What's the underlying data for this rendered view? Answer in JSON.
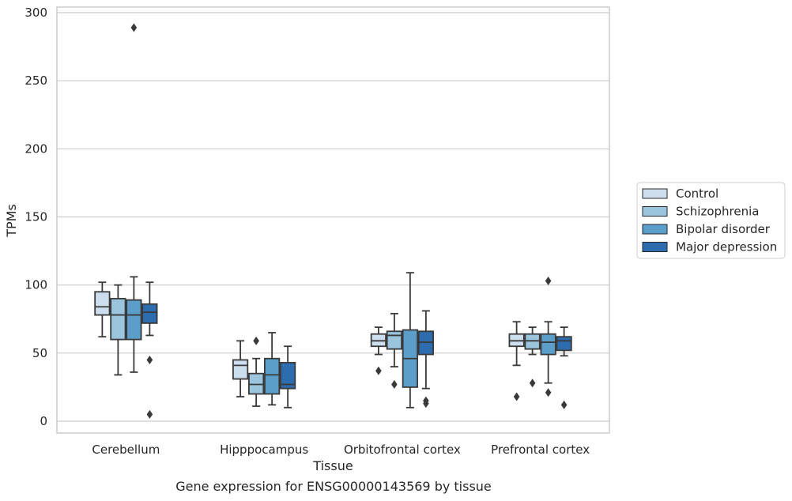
{
  "chart_data": {
    "type": "box",
    "title": "",
    "xlabel": "Tissue",
    "ylabel": "TPMs",
    "ylim": [
      -8,
      303
    ],
    "yticks": [
      0,
      50,
      100,
      150,
      200,
      250,
      300
    ],
    "grid": "horizontal",
    "legend_position": "right-center",
    "categories": [
      "Cerebellum",
      "Hipppocampus",
      "Orbitofrontal cortex",
      "Prefrontal cortex"
    ],
    "series": [
      {
        "name": "Control",
        "color": "#cddeef",
        "boxes": [
          {
            "whislo": 62,
            "q1": 78,
            "med": 84,
            "q3": 95,
            "whishi": 102,
            "fliers": []
          },
          {
            "whislo": 18,
            "q1": 31,
            "med": 41,
            "q3": 45,
            "whishi": 59,
            "fliers": []
          },
          {
            "whislo": 49,
            "q1": 55,
            "med": 59,
            "q3": 64,
            "whishi": 69,
            "fliers": [
              37
            ]
          },
          {
            "whislo": 41,
            "q1": 55,
            "med": 59,
            "q3": 64,
            "whishi": 73,
            "fliers": [
              18
            ]
          }
        ]
      },
      {
        "name": "Schizophrenia",
        "color": "#9bc4dd",
        "boxes": [
          {
            "whislo": 34,
            "q1": 60,
            "med": 78,
            "q3": 90,
            "whishi": 100,
            "fliers": []
          },
          {
            "whislo": 11,
            "q1": 20,
            "med": 27,
            "q3": 35,
            "whishi": 46,
            "fliers": [
              59
            ]
          },
          {
            "whislo": 40,
            "q1": 53,
            "med": 63,
            "q3": 66,
            "whishi": 79,
            "fliers": [
              27
            ]
          },
          {
            "whislo": 49,
            "q1": 53,
            "med": 59,
            "q3": 64,
            "whishi": 69,
            "fliers": [
              28
            ]
          }
        ]
      },
      {
        "name": "Bipolar disorder",
        "color": "#5a9ec9",
        "boxes": [
          {
            "whislo": 36,
            "q1": 60,
            "med": 78,
            "q3": 89,
            "whishi": 106,
            "fliers": [
              289
            ]
          },
          {
            "whislo": 12,
            "q1": 20,
            "med": 34,
            "q3": 46,
            "whishi": 65,
            "fliers": []
          },
          {
            "whislo": 10,
            "q1": 25,
            "med": 46,
            "q3": 67,
            "whishi": 109,
            "fliers": []
          },
          {
            "whislo": 28,
            "q1": 49,
            "med": 58,
            "q3": 64,
            "whishi": 73,
            "fliers": [
              103,
              21
            ]
          }
        ]
      },
      {
        "name": "Major depression",
        "color": "#2d6daf",
        "boxes": [
          {
            "whislo": 63,
            "q1": 72,
            "med": 80,
            "q3": 86,
            "whishi": 102,
            "fliers": [
              45,
              5
            ]
          },
          {
            "whislo": 10,
            "q1": 24,
            "med": 27,
            "q3": 43,
            "whishi": 55,
            "fliers": []
          },
          {
            "whislo": 24,
            "q1": 49,
            "med": 58,
            "q3": 66,
            "whishi": 81,
            "fliers": [
              15,
              13
            ]
          },
          {
            "whislo": 48,
            "q1": 52,
            "med": 59,
            "q3": 62,
            "whishi": 69,
            "fliers": [
              12
            ]
          }
        ]
      }
    ]
  },
  "caption": "Gene expression for ENSG00000143569 by tissue"
}
